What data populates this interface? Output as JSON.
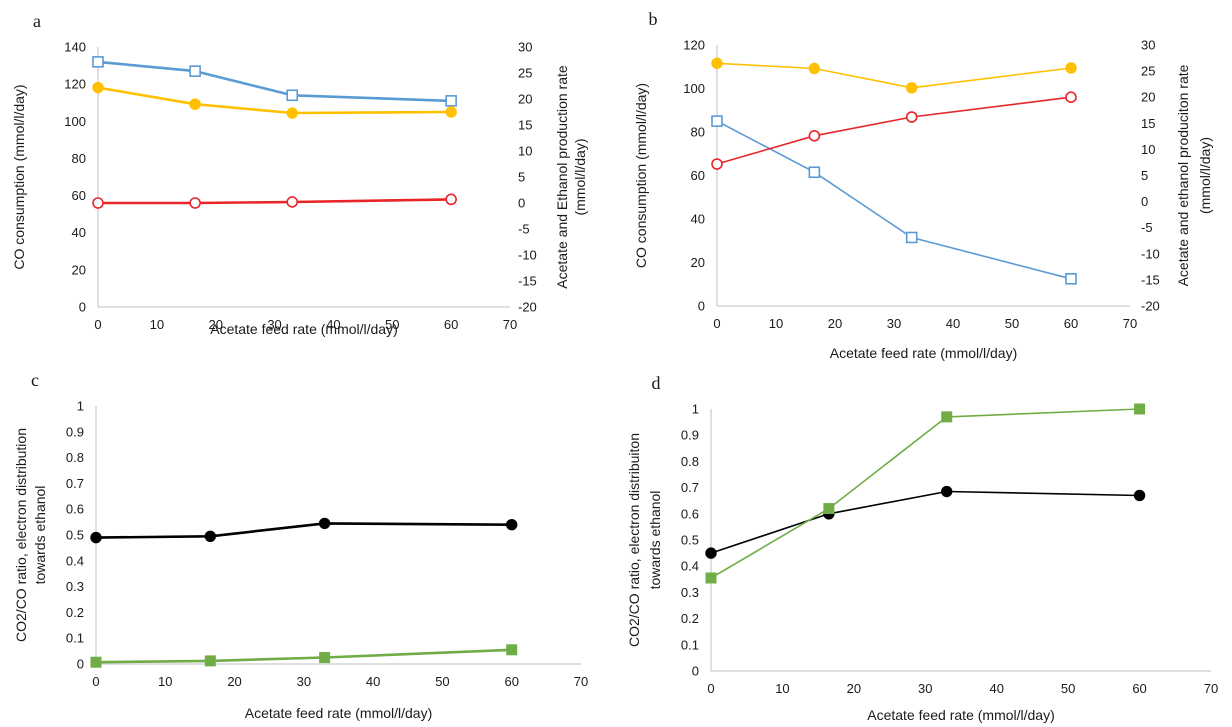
{
  "chart_data": [
    {
      "panel": "a",
      "type": "line",
      "xlabel": "Acetate feed rate (mmol/l/day)",
      "ylabel": "CO consumption (mmol/l/day)",
      "y2label_line1": "Acetate and Ethanol production rate",
      "y2label_line2": "(mmol/l/day)",
      "xlim": [
        0,
        70
      ],
      "xticks": [
        0,
        10,
        20,
        30,
        40,
        50,
        60,
        70
      ],
      "ylim": [
        0,
        140
      ],
      "yticks": [
        0,
        20,
        40,
        60,
        80,
        100,
        120,
        140
      ],
      "y2lim": [
        -20,
        30
      ],
      "y2ticks": [
        -20,
        -15,
        -10,
        -5,
        0,
        5,
        10,
        15,
        20,
        25,
        30
      ],
      "grid": false,
      "series": [
        {
          "axis": "y",
          "marker": "square-open",
          "color": "#5b9bd5",
          "x": [
            0,
            16.5,
            33,
            60
          ],
          "y": [
            132,
            127,
            114,
            111
          ]
        },
        {
          "axis": "y2",
          "marker": "circle-filled",
          "color": "#ffc000",
          "x": [
            0,
            16.5,
            33,
            60
          ],
          "y": [
            22.2,
            19,
            17.3,
            17.5
          ]
        },
        {
          "axis": "y2",
          "marker": "circle-open",
          "color": "#e8262a",
          "x": [
            0,
            16.5,
            33,
            60
          ],
          "y": [
            0,
            0,
            0.2,
            0.7
          ]
        }
      ]
    },
    {
      "panel": "b",
      "type": "line",
      "xlabel": "Acetate feed rate (mmol/l/day)",
      "ylabel": "CO consumption (mmol/l/day)",
      "y2label_line1": "Acetate and ethanol produciton rate",
      "y2label_line2": "(mmol/l/day)",
      "xlim": [
        0,
        70
      ],
      "xticks": [
        0,
        10,
        20,
        30,
        40,
        50,
        60,
        70
      ],
      "ylim": [
        0,
        120
      ],
      "yticks": [
        0,
        20,
        40,
        60,
        80,
        100,
        120
      ],
      "y2lim": [
        -20,
        30
      ],
      "y2ticks": [
        -20,
        -15,
        -10,
        -5,
        0,
        5,
        10,
        15,
        20,
        25,
        30
      ],
      "grid": false,
      "series": [
        {
          "axis": "y",
          "marker": "square-open",
          "color": "#5b9bd5",
          "x": [
            0,
            16.5,
            33,
            60
          ],
          "y": [
            85,
            61.5,
            31.5,
            12.5
          ]
        },
        {
          "axis": "y2",
          "marker": "circle-filled",
          "color": "#ffc000",
          "x": [
            0,
            16.5,
            33,
            60
          ],
          "y": [
            26.5,
            25.5,
            21.8,
            25.6
          ]
        },
        {
          "axis": "y2",
          "marker": "circle-open",
          "color": "#e8262a",
          "x": [
            0,
            16.5,
            33,
            60
          ],
          "y": [
            7.2,
            12.6,
            16.2,
            20
          ]
        }
      ]
    },
    {
      "panel": "c",
      "type": "line",
      "xlabel": "Acetate feed rate (mmol/l/day)",
      "ylabel_line1": "CO2/CO ratio, electron distribution",
      "ylabel_line2": "towards ethanol",
      "xlim": [
        0,
        70
      ],
      "xticks": [
        0,
        10,
        20,
        30,
        40,
        50,
        60,
        70
      ],
      "ylim": [
        0,
        1
      ],
      "yticks": [
        0,
        0.1,
        0.2,
        0.3,
        0.4,
        0.5,
        0.6,
        0.7,
        0.8,
        0.9,
        1
      ],
      "grid": false,
      "series": [
        {
          "marker": "circle-filled",
          "color": "#000000",
          "x": [
            0,
            16.5,
            33,
            60
          ],
          "y": [
            0.49,
            0.495,
            0.545,
            0.54
          ]
        },
        {
          "marker": "square-filled",
          "color": "#70ad47",
          "x": [
            0,
            16.5,
            33,
            60
          ],
          "y": [
            0.007,
            0.012,
            0.025,
            0.055
          ]
        }
      ]
    },
    {
      "panel": "d",
      "type": "line",
      "xlabel": "Acetate feed rate (mmol/l/day)",
      "ylabel_line1": "CO2/CO ratio, electron distribuiton",
      "ylabel_line2": "towards ethanol",
      "xlim": [
        0,
        70
      ],
      "xticks": [
        0,
        10,
        20,
        30,
        40,
        50,
        60,
        70
      ],
      "ylim": [
        0,
        1
      ],
      "yticks": [
        0,
        0.1,
        0.2,
        0.3,
        0.4,
        0.5,
        0.6,
        0.7,
        0.8,
        0.9,
        1
      ],
      "grid": false,
      "series": [
        {
          "marker": "circle-filled",
          "color": "#000000",
          "x": [
            0,
            16.5,
            33,
            60
          ],
          "y": [
            0.45,
            0.6,
            0.685,
            0.67
          ]
        },
        {
          "marker": "square-filled",
          "color": "#70ad47",
          "x": [
            0,
            16.5,
            33,
            60
          ],
          "y": [
            0.355,
            0.62,
            0.97,
            1.0
          ]
        }
      ]
    }
  ]
}
